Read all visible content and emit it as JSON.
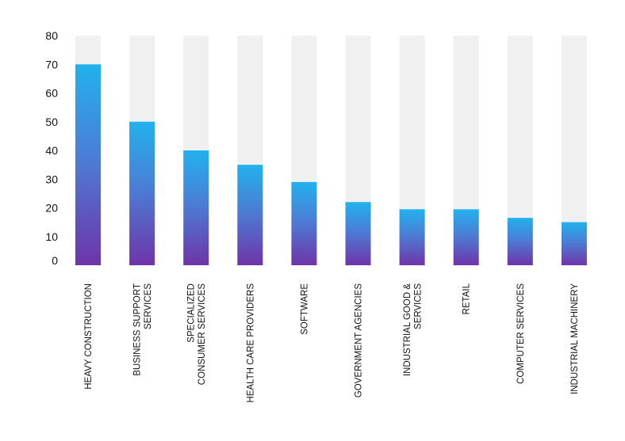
{
  "chart_data": {
    "type": "bar",
    "title": "",
    "xlabel": "",
    "ylabel": "",
    "ylim": [
      0,
      80
    ],
    "yticks": [
      0,
      10,
      20,
      30,
      40,
      50,
      60,
      70,
      80
    ],
    "grid": false,
    "legend": "none",
    "categories": [
      [
        "HEAVY CONSTRUCTION"
      ],
      [
        "BUSINESS SUPPORT",
        "SERVICES"
      ],
      [
        "SPECIALIZED",
        "CONSUMER SERVICES"
      ],
      [
        "HEALTH CARE PROVIDERS"
      ],
      [
        "SOFTWARE"
      ],
      [
        "GOVERNMENT AGENCIES"
      ],
      [
        "INDUSTRIAL GOOD &",
        "SERVICES"
      ],
      [
        "RETAIL"
      ],
      [
        "COMPUTER SERVICES"
      ],
      [
        "INDUSTRIAL MACHINERY"
      ]
    ],
    "values": [
      70,
      50,
      40,
      35,
      29,
      22,
      19.5,
      19.5,
      16.5,
      15
    ],
    "background_bar_max": 80,
    "colors": {
      "bar_top": "#22b1ee",
      "bar_bottom": "#6f34a8",
      "track": "#f0f0f0",
      "text": "#111111"
    }
  }
}
